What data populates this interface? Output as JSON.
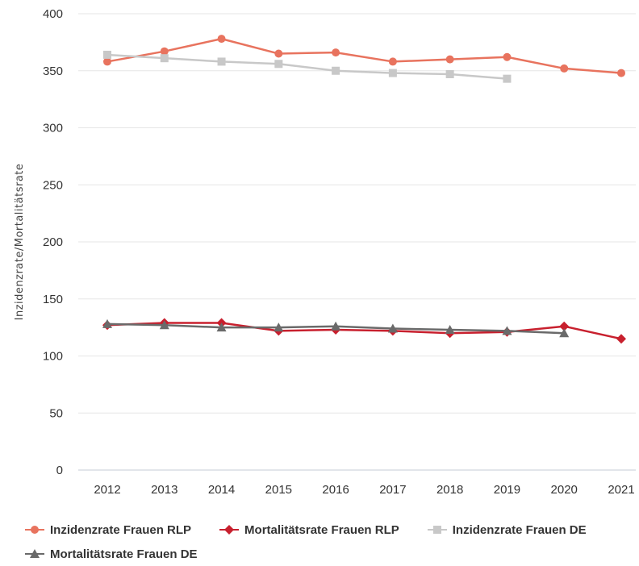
{
  "chart_data": {
    "type": "line",
    "title": "",
    "xlabel": "",
    "ylabel": "Inzidenzrate/Mortalitätsrate",
    "categories": [
      "2012",
      "2013",
      "2014",
      "2015",
      "2016",
      "2017",
      "2018",
      "2019",
      "2020",
      "2021"
    ],
    "ylim": [
      0,
      400
    ],
    "yticks": [
      0,
      50,
      100,
      150,
      200,
      250,
      300,
      350,
      400
    ],
    "grid": true,
    "legend_position": "bottom",
    "series": [
      {
        "name": "Inzidenzrate Frauen RLP",
        "color": "#e8735e",
        "marker": "circle",
        "values": [
          358,
          367,
          378,
          365,
          366,
          358,
          360,
          362,
          352,
          348
        ]
      },
      {
        "name": "Mortalitätsrate Frauen RLP",
        "color": "#c8202e",
        "marker": "diamond",
        "values": [
          127,
          129,
          129,
          122,
          123,
          122,
          120,
          121,
          126,
          115
        ]
      },
      {
        "name": "Inzidenzrate Frauen DE",
        "color": "#c8c8c8",
        "marker": "square",
        "values": [
          364,
          361,
          358,
          356,
          350,
          348,
          347,
          343,
          null,
          null
        ]
      },
      {
        "name": "Mortalitätsrate Frauen DE",
        "color": "#6a6a6a",
        "marker": "triangle",
        "values": [
          128,
          127,
          125,
          125,
          126,
          124,
          123,
          122,
          120,
          null
        ]
      }
    ]
  }
}
